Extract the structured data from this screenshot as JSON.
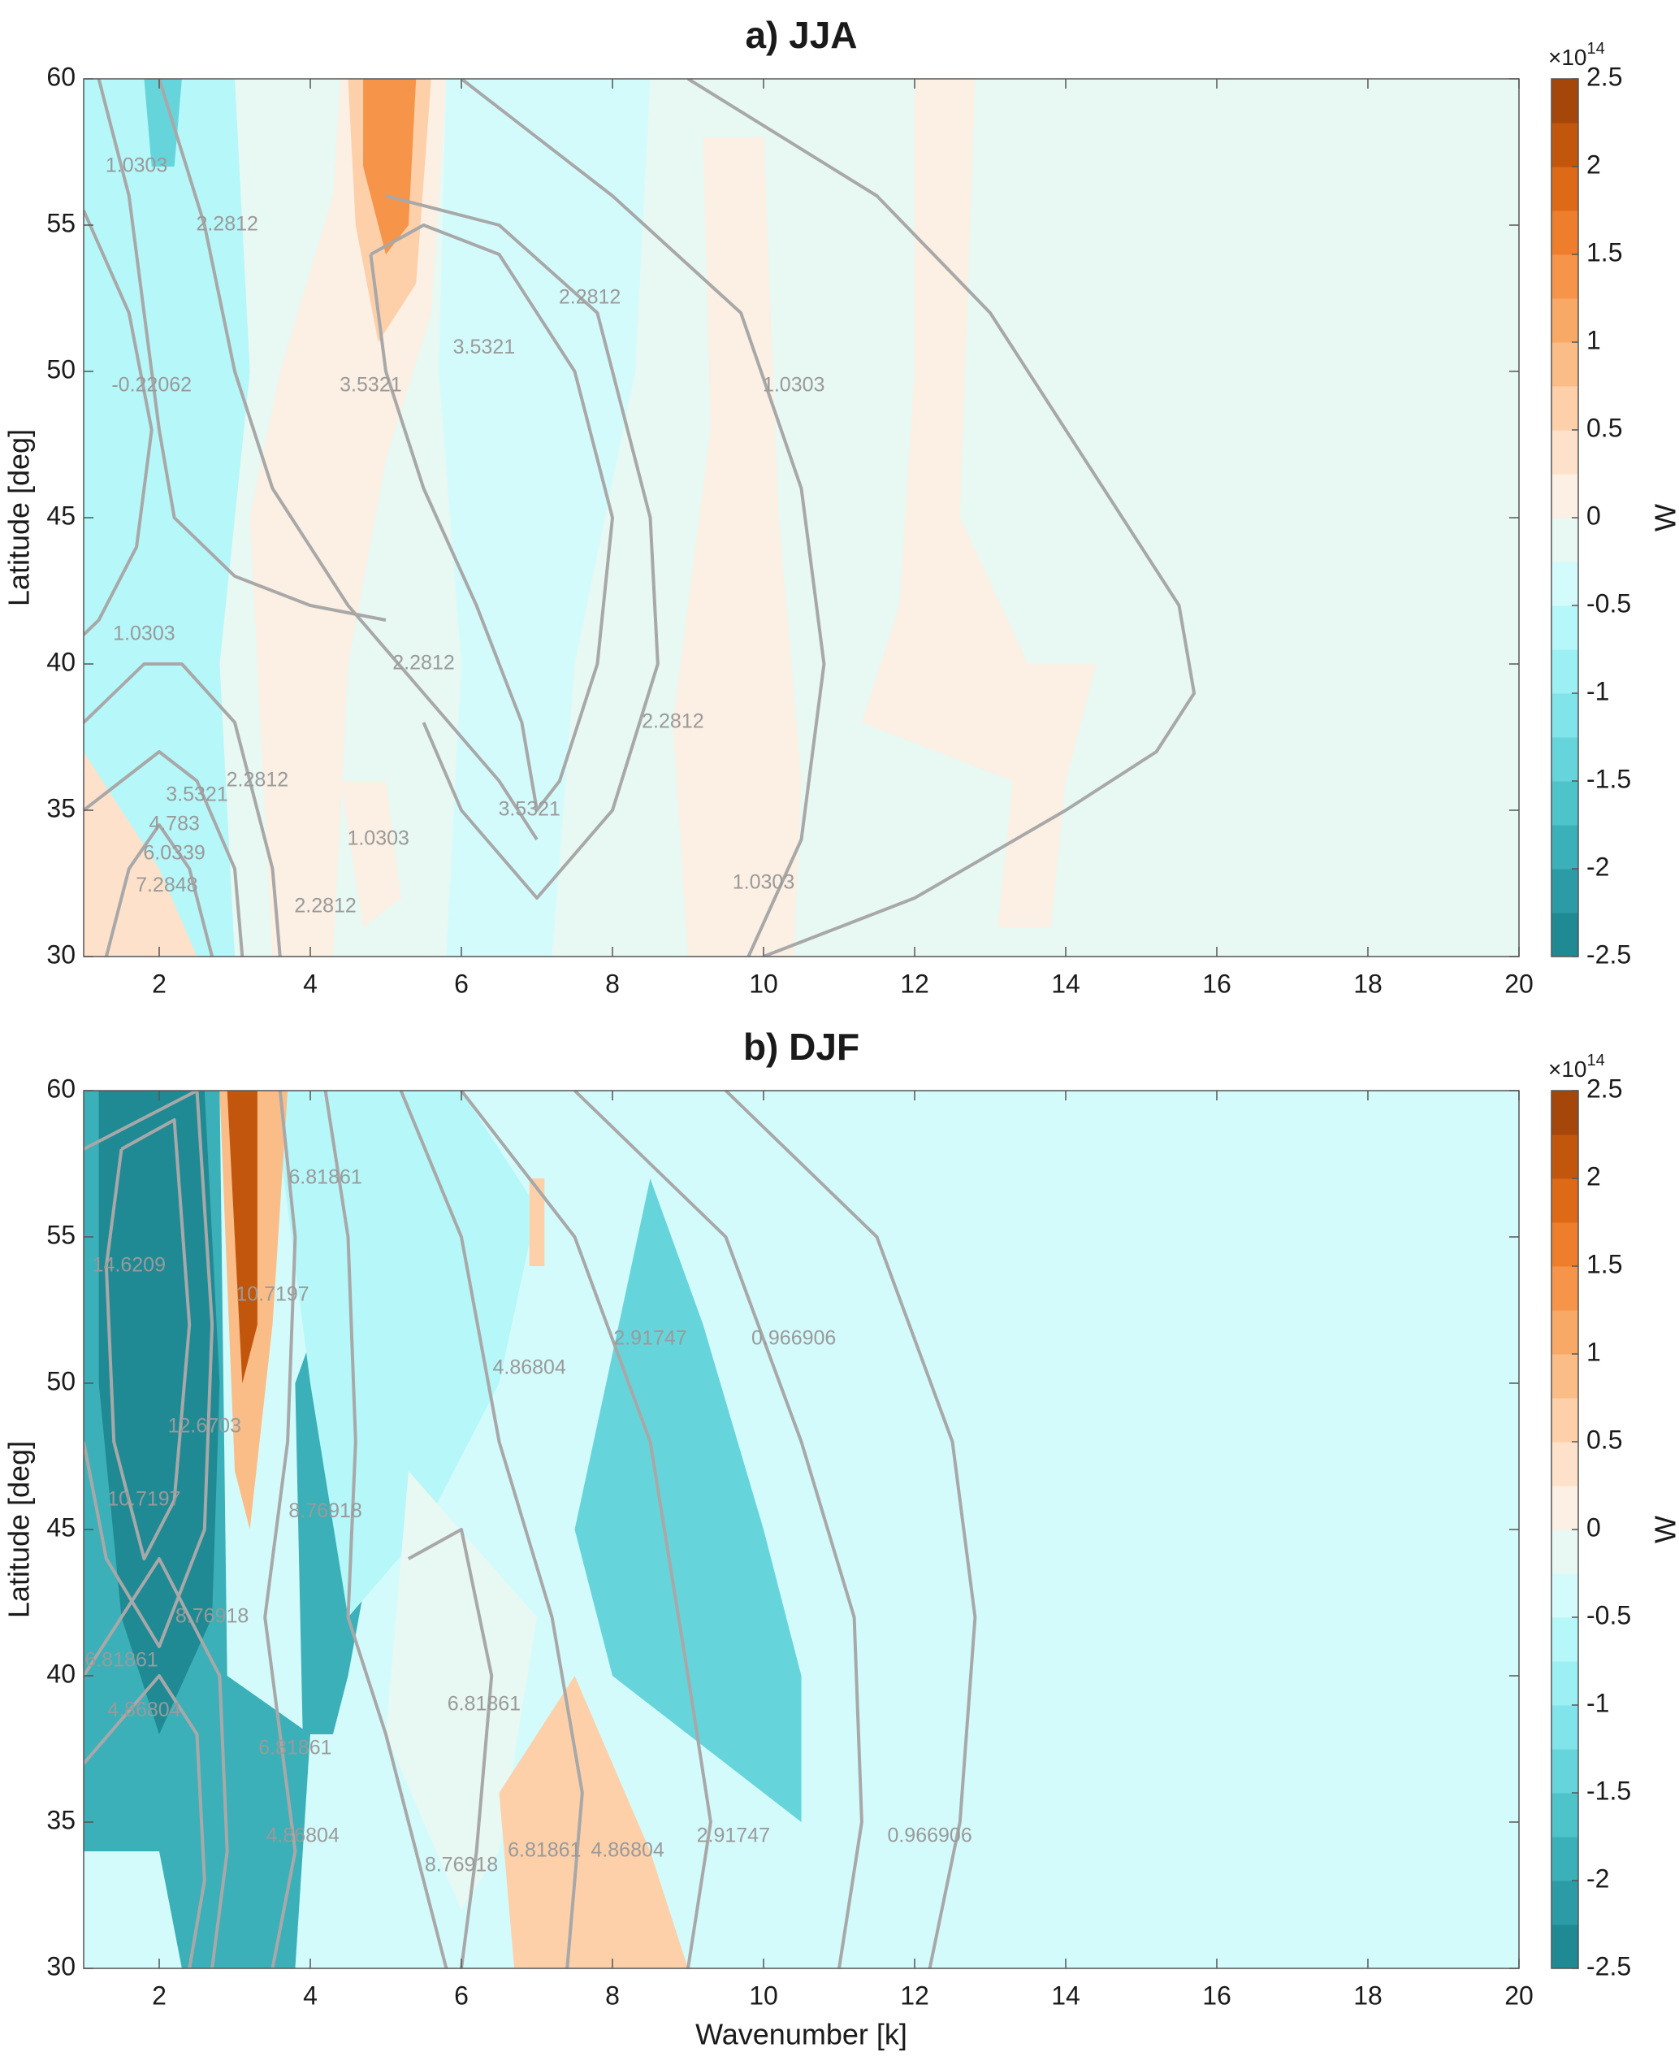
{
  "chart_data": [
    {
      "type": "contourf",
      "title": "a) JJA",
      "ylabel": "Latitude [deg]",
      "xlim": [
        1,
        20
      ],
      "ylim": [
        30,
        60
      ],
      "xticks": [
        2,
        4,
        6,
        8,
        10,
        12,
        14,
        16,
        18,
        20
      ],
      "yticks": [
        30,
        35,
        40,
        45,
        50,
        55,
        60
      ],
      "colorbar": {
        "label": "W",
        "scale": "×10",
        "exponent": "14",
        "clim": [
          -2.5,
          2.5
        ],
        "ticks": [
          -2.5,
          -2,
          -1.5,
          -1,
          -0.5,
          0,
          0.5,
          1,
          1.5,
          2,
          2.5
        ],
        "colors": [
          "#1f8a94",
          "#2b9ca5",
          "#3bb0b8",
          "#4ec4ca",
          "#66d5db",
          "#80e4ea",
          "#9cf0f4",
          "#b6f7f9",
          "#d4fbfc",
          "#e8f8f2",
          "#fcefe3",
          "#fde1ca",
          "#fdd0aa",
          "#fbbd88",
          "#f9a966",
          "#f6944a",
          "#ef7e2c",
          "#de6916",
          "#c2560d",
          "#a5460a"
        ]
      },
      "background": -0.125,
      "regions": [
        {
          "level": -0.625,
          "x": [
            1,
            3,
            3.2,
            3,
            2.8,
            3,
            1.5,
            1
          ],
          "y": [
            60,
            60,
            50,
            45,
            40,
            30,
            30,
            35
          ]
        },
        {
          "level": -1.375,
          "x": [
            1.8,
            2.3,
            2.2,
            1.9
          ],
          "y": [
            60,
            60,
            57,
            57
          ]
        },
        {
          "level": -0.375,
          "x": [
            5.8,
            8.5,
            8.3,
            7.5,
            7.2,
            5.8,
            6,
            5.7
          ],
          "y": [
            60,
            60,
            50,
            40,
            30,
            30,
            40,
            50
          ]
        },
        {
          "level": 0.125,
          "x": [
            4.4,
            5.8,
            5.6,
            5,
            4.5,
            4.3,
            3.5,
            3.2,
            3.6,
            4.3
          ],
          "y": [
            60,
            60,
            52,
            47,
            40,
            30,
            30,
            45,
            50,
            56
          ]
        },
        {
          "level": 0.625,
          "x": [
            4.5,
            5.6,
            5.4,
            4.9,
            4.6
          ],
          "y": [
            60,
            60,
            53,
            51,
            55
          ]
        },
        {
          "level": 1.375,
          "x": [
            4.7,
            5.4,
            5.3,
            5,
            4.7
          ],
          "y": [
            60,
            60,
            55,
            54,
            57
          ]
        },
        {
          "level": 0.125,
          "x": [
            9.2,
            10,
            10.2,
            10.5,
            10.4,
            9,
            8.8,
            9.3
          ],
          "y": [
            58,
            58,
            45,
            36,
            30,
            30,
            38,
            48
          ]
        },
        {
          "level": 0.125,
          "x": [
            12,
            12.8,
            12.6,
            13.5,
            14.4,
            14,
            13.8,
            13.1,
            13.3,
            11.3,
            11.8,
            12
          ],
          "y": [
            60,
            60,
            45,
            40,
            40,
            36,
            31,
            31,
            36,
            38,
            42,
            50
          ]
        },
        {
          "level": 0.375,
          "x": [
            1,
            1,
            2,
            2.5
          ],
          "y": [
            30,
            37,
            33,
            30
          ]
        },
        {
          "level": 0.125,
          "x": [
            4.4,
            5,
            5.2,
            4.7
          ],
          "y": [
            36,
            36,
            32,
            31
          ]
        }
      ],
      "contours": [
        {
          "x": [
            1,
            1.6,
            1.9,
            1.7,
            1.2,
            1
          ],
          "y": [
            55.5,
            52,
            48,
            44,
            41.5,
            41
          ]
        },
        {
          "x": [
            1.2,
            1.6,
            1.8,
            2,
            2.2,
            3,
            4,
            5
          ],
          "y": [
            60,
            56,
            52,
            48,
            45,
            43,
            42,
            41.5
          ]
        },
        {
          "x": [
            2,
            2.6,
            3,
            3.5,
            4.5,
            5.5,
            6.5,
            7
          ],
          "y": [
            60,
            55,
            50,
            46,
            42,
            39,
            36,
            34
          ]
        },
        {
          "x": [
            4.8,
            5,
            5.5,
            6.2,
            6.8,
            7,
            7.3,
            7.8,
            8,
            7.5,
            6.5,
            5.5,
            4.8
          ],
          "y": [
            54,
            50,
            46,
            42,
            38,
            35,
            36,
            40,
            45,
            50,
            54,
            55,
            54
          ]
        },
        {
          "x": [
            5,
            6.5,
            7.8,
            8.5,
            8.6,
            8,
            7,
            6,
            5.5
          ],
          "y": [
            56,
            55,
            52,
            45,
            40,
            35,
            32,
            35,
            38
          ]
        },
        {
          "x": [
            6,
            8,
            9.7,
            10.5,
            10.8,
            10.5,
            9.8
          ],
          "y": [
            60,
            56,
            52,
            46,
            40,
            34,
            30
          ]
        },
        {
          "x": [
            9,
            11.5,
            13,
            14.5,
            15.5,
            15.7,
            15.2,
            14,
            12,
            10
          ],
          "y": [
            60,
            56,
            52,
            46,
            42,
            39,
            37,
            35,
            32,
            30
          ]
        },
        {
          "x": [
            1,
            1.5,
            2,
            2.5,
            3,
            3.1
          ],
          "y": [
            35,
            36,
            37,
            36,
            33,
            30
          ]
        },
        {
          "x": [
            1.3,
            1.6,
            2,
            2.4,
            2.7
          ],
          "y": [
            30,
            33,
            34.5,
            33,
            30
          ]
        },
        {
          "x": [
            1,
            1.8,
            2.3,
            3,
            3.5,
            3.6
          ],
          "y": [
            38,
            40,
            40,
            38,
            33,
            30
          ]
        }
      ],
      "contour_labels": [
        {
          "text": "1.0303",
          "x": 1.7,
          "y": 57
        },
        {
          "text": "2.2812",
          "x": 2.9,
          "y": 55
        },
        {
          "text": "-0.22062",
          "x": 1.9,
          "y": 49.5
        },
        {
          "text": "3.5321",
          "x": 4.8,
          "y": 49.5
        },
        {
          "text": "3.5321",
          "x": 6.3,
          "y": 50.8
        },
        {
          "text": "2.2812",
          "x": 7.7,
          "y": 52.5
        },
        {
          "text": "1.0303",
          "x": 10.4,
          "y": 49.5
        },
        {
          "text": "1.0303",
          "x": 1.8,
          "y": 41
        },
        {
          "text": "2.2812",
          "x": 5.5,
          "y": 40
        },
        {
          "text": "2.2812",
          "x": 8.8,
          "y": 38
        },
        {
          "text": "3.5321",
          "x": 2.5,
          "y": 35.5
        },
        {
          "text": "4.783",
          "x": 2.2,
          "y": 34.5
        },
        {
          "text": "6.0339",
          "x": 2.2,
          "y": 33.5
        },
        {
          "text": "7.2848",
          "x": 2.1,
          "y": 32.4
        },
        {
          "text": "2.2812",
          "x": 3.3,
          "y": 36
        },
        {
          "text": "3.5321",
          "x": 6.9,
          "y": 35
        },
        {
          "text": "1.0303",
          "x": 4.9,
          "y": 34
        },
        {
          "text": "2.2812",
          "x": 4.2,
          "y": 31.7
        },
        {
          "text": "1.0303",
          "x": 10,
          "y": 32.5
        }
      ]
    },
    {
      "type": "contourf",
      "title": "b) DJF",
      "ylabel": "Latitude [deg]",
      "xlabel": "Wavenumber [k]",
      "xlim": [
        1,
        20
      ],
      "ylim": [
        30,
        60
      ],
      "xticks": [
        2,
        4,
        6,
        8,
        10,
        12,
        14,
        16,
        18,
        20
      ],
      "yticks": [
        30,
        35,
        40,
        45,
        50,
        55,
        60
      ],
      "colorbar": {
        "label": "W",
        "scale": "×10",
        "exponent": "14",
        "clim": [
          -2.5,
          2.5
        ],
        "ticks": [
          -2.5,
          -2,
          -1.5,
          -1,
          -0.5,
          0,
          0.5,
          1,
          1.5,
          2,
          2.5
        ],
        "colors": [
          "#1f8a94",
          "#2b9ca5",
          "#3bb0b8",
          "#4ec4ca",
          "#66d5db",
          "#80e4ea",
          "#9cf0f4",
          "#b6f7f9",
          "#d4fbfc",
          "#e8f8f2",
          "#fcefe3",
          "#fde1ca",
          "#fdd0aa",
          "#fbbd88",
          "#f9a966",
          "#f6944a",
          "#ef7e2c",
          "#de6916",
          "#c2560d",
          "#a5460a"
        ]
      },
      "background": -0.375,
      "regions": [
        {
          "level": -1.875,
          "x": [
            1,
            2.8,
            2.9,
            4,
            3.8,
            2.3,
            2,
            1
          ],
          "y": [
            60,
            60,
            40,
            38,
            30,
            30,
            34,
            34
          ]
        },
        {
          "level": -1.875,
          "x": [
            3.8,
            4.5,
            5.2,
            6,
            5.8,
            5,
            4.5,
            4.3,
            3.9
          ],
          "y": [
            50,
            55,
            60,
            60,
            52,
            47,
            40,
            38,
            38
          ]
        },
        {
          "level": -2.375,
          "x": [
            1.2,
            2.6,
            2.8,
            2.7,
            2,
            1.5,
            1.2
          ],
          "y": [
            60,
            60,
            50,
            42,
            38,
            42,
            50
          ]
        },
        {
          "level": -0.625,
          "x": [
            3.5,
            6,
            7,
            6.5,
            5.5,
            4.5,
            4
          ],
          "y": [
            60,
            60,
            56,
            50,
            45,
            42,
            50
          ]
        },
        {
          "level": -1.375,
          "x": [
            8.5,
            9.2,
            10,
            10.5,
            10.5,
            9.5,
            8,
            7.5
          ],
          "y": [
            57,
            52,
            45,
            40,
            35,
            37,
            40,
            45
          ]
        },
        {
          "level": -0.125,
          "x": [
            5.3,
            7,
            6.5,
            6,
            5
          ],
          "y": [
            47,
            42,
            34,
            32,
            38
          ]
        },
        {
          "level": 0.875,
          "x": [
            2.8,
            3.7,
            3.5,
            3.2,
            3
          ],
          "y": [
            60,
            60,
            52,
            45,
            47
          ]
        },
        {
          "level": 2.125,
          "x": [
            2.9,
            3.3,
            3.3,
            3.1,
            3
          ],
          "y": [
            60,
            60,
            52,
            50,
            55
          ]
        },
        {
          "level": 0.625,
          "x": [
            6.5,
            7.5,
            8.5,
            9,
            6.7
          ],
          "y": [
            36,
            40,
            34,
            30,
            30
          ]
        },
        {
          "level": 0.625,
          "x": [
            6.9,
            7.1,
            7.1,
            6.9
          ],
          "y": [
            57,
            57,
            54,
            54
          ]
        }
      ],
      "contours": [
        {
          "x": [
            1.5,
            2.2,
            2.4,
            2.2,
            1.8,
            1.4,
            1.3,
            1.5
          ],
          "y": [
            58,
            59,
            52,
            46,
            44,
            48,
            54,
            58
          ]
        },
        {
          "x": [
            1,
            2.5,
            2.7,
            2.6,
            2,
            1.3,
            1
          ],
          "y": [
            58,
            60,
            52,
            45,
            41,
            44,
            48
          ]
        },
        {
          "x": [
            1,
            2,
            2.8,
            2.9,
            2.7
          ],
          "y": [
            40,
            44,
            40,
            34,
            30
          ]
        },
        {
          "x": [
            1,
            2,
            2.5,
            2.6,
            2.4
          ],
          "y": [
            37,
            40,
            38,
            33,
            30
          ]
        },
        {
          "x": [
            3.6,
            3.8,
            3.7,
            3.4,
            3.6,
            3.8,
            3.5
          ],
          "y": [
            60,
            55,
            48,
            42,
            38,
            34,
            30
          ]
        },
        {
          "x": [
            4.2,
            4.5,
            4.6,
            4.5,
            5,
            5.5,
            5.8
          ],
          "y": [
            60,
            55,
            48,
            42,
            38,
            33,
            30
          ]
        },
        {
          "x": [
            5.2,
            6,
            6.5,
            7.2,
            7.6,
            7.4
          ],
          "y": [
            60,
            55,
            48,
            42,
            36,
            30
          ]
        },
        {
          "x": [
            6,
            7.5,
            8.5,
            9,
            9.3,
            9
          ],
          "y": [
            60,
            55,
            48,
            40,
            35,
            30
          ]
        },
        {
          "x": [
            7.5,
            9.5,
            10.5,
            11.2,
            11.3,
            11
          ],
          "y": [
            60,
            55,
            48,
            42,
            35,
            30
          ]
        },
        {
          "x": [
            9.5,
            11.5,
            12.5,
            12.8,
            12.6,
            12.2
          ],
          "y": [
            60,
            55,
            48,
            42,
            35,
            30
          ]
        },
        {
          "x": [
            5.3,
            6,
            6.4,
            6.2,
            6
          ],
          "y": [
            44,
            45,
            40,
            34,
            30
          ]
        }
      ],
      "contour_labels": [
        {
          "text": "14.6209",
          "x": 1.6,
          "y": 54
        },
        {
          "text": "12.6703",
          "x": 2.6,
          "y": 48.5
        },
        {
          "text": "10.7197",
          "x": 1.8,
          "y": 46
        },
        {
          "text": "8.76918",
          "x": 2.7,
          "y": 42
        },
        {
          "text": "6.81861",
          "x": 1.5,
          "y": 40.5
        },
        {
          "text": "4.86804",
          "x": 1.8,
          "y": 38.8
        },
        {
          "text": "10.7197",
          "x": 3.5,
          "y": 53
        },
        {
          "text": "6.81861",
          "x": 4.2,
          "y": 57
        },
        {
          "text": "8.76918",
          "x": 4.2,
          "y": 45.6
        },
        {
          "text": "6.81861",
          "x": 3.8,
          "y": 37.5
        },
        {
          "text": "4.86804",
          "x": 3.9,
          "y": 34.5
        },
        {
          "text": "6.81861",
          "x": 6.3,
          "y": 39
        },
        {
          "text": "4.86804",
          "x": 6.9,
          "y": 50.5
        },
        {
          "text": "2.91747",
          "x": 8.5,
          "y": 51.5
        },
        {
          "text": "0.966906",
          "x": 10.4,
          "y": 51.5
        },
        {
          "text": "8.76918",
          "x": 6,
          "y": 33.5
        },
        {
          "text": "6.81861",
          "x": 7.1,
          "y": 34
        },
        {
          "text": "4.86804",
          "x": 8.2,
          "y": 34
        },
        {
          "text": "2.91747",
          "x": 9.6,
          "y": 34.5
        },
        {
          "text": "0.966906",
          "x": 12.2,
          "y": 34.5
        }
      ]
    }
  ]
}
